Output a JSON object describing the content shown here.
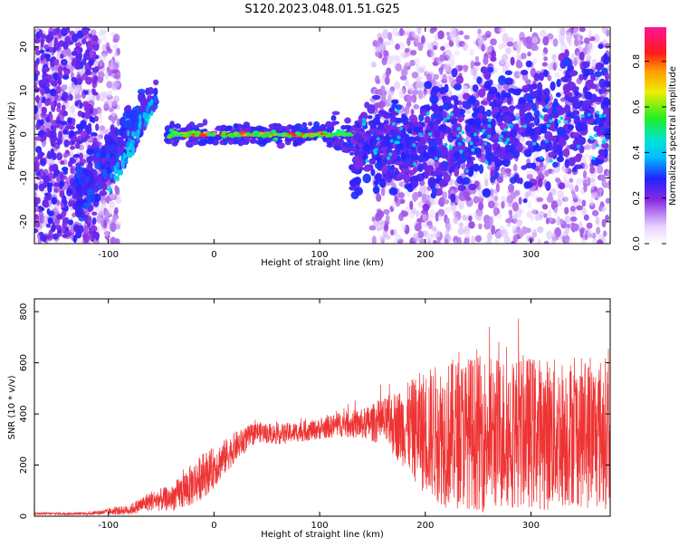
{
  "title": "S120.2023.048.01.51.G25",
  "chart_data": [
    {
      "type": "heatmap",
      "xlabel": "Height of straight line (km)",
      "ylabel": "Frequency (Hz)",
      "xlim": [
        -170,
        375
      ],
      "ylim": [
        -25,
        24.5
      ],
      "xticks": [
        -100,
        0,
        100,
        200,
        300
      ],
      "yticks": [
        -20,
        -10,
        0,
        10,
        20
      ],
      "colorbar": {
        "label": "Normalized spectral amplitude",
        "range": [
          0.0,
          0.95
        ],
        "ticks": [
          0.0,
          0.2,
          0.4,
          0.6,
          0.8
        ],
        "colormap": "rainbow (white, violet, blue, cyan, green, yellow, red, magenta)"
      },
      "features": {
        "ridge_line": {
          "x_from": -45,
          "x_to": 130,
          "frequency": 0,
          "amplitude": 0.9
        },
        "left_arc": {
          "x_from": -100,
          "x_to": -55,
          "frequency_from": -15,
          "frequency_to": 8
        },
        "noise_region_right": {
          "x_from": 130,
          "x_to": 375,
          "frequency_from": -25,
          "frequency_to": 24
        }
      }
    },
    {
      "type": "line",
      "xlabel": "Height of straight line (km)",
      "ylabel": "SNR (10 * v/v)",
      "xlim": [
        -170,
        375
      ],
      "ylim": [
        0,
        850
      ],
      "xticks": [
        -100,
        0,
        100,
        200,
        300
      ],
      "yticks": [
        0,
        200,
        400,
        600,
        800
      ],
      "series": [
        {
          "color": "#ee3333",
          "envelope": {
            "x": [
              -170,
              -120,
              -80,
              -60,
              -40,
              -25,
              -10,
              0,
              20,
              40,
              60,
              80,
              100,
              120,
              140,
              160,
              180,
              200,
              220,
              240,
              260,
              280,
              300,
              320,
              340,
              360,
              375
            ],
            "mean": [
              10,
              10,
              25,
              60,
              70,
              110,
              160,
              190,
              270,
              330,
              320,
              330,
              340,
              360,
              360,
              370,
              350,
              330,
              320,
              330,
              320,
              330,
              330,
              320,
              330,
              320,
              330
            ],
            "spread": [
              5,
              5,
              20,
              40,
              50,
              80,
              90,
              80,
              60,
              40,
              40,
              40,
              40,
              50,
              60,
              90,
              160,
              250,
              290,
              300,
              310,
              300,
              300,
              300,
              290,
              300,
              300
            ]
          }
        }
      ]
    }
  ]
}
